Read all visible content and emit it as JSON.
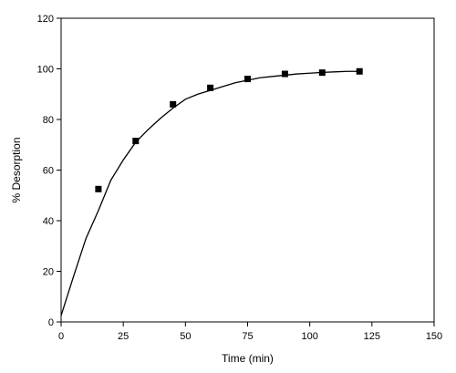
{
  "chart_data": {
    "type": "scatter",
    "title": "",
    "xlabel": "Time (min)",
    "ylabel": "% Desorption",
    "xlim": [
      0,
      150
    ],
    "ylim": [
      0,
      120
    ],
    "xticks": [
      0,
      25,
      50,
      75,
      100,
      125,
      150
    ],
    "yticks": [
      0,
      20,
      40,
      60,
      80,
      100,
      120
    ],
    "grid": false,
    "legend": "none",
    "series": [
      {
        "kind": "scatter",
        "marker": "square",
        "color": "#000000",
        "x": [
          15,
          30,
          45,
          60,
          75,
          90,
          105,
          120
        ],
        "y": [
          52.5,
          71.5,
          86,
          92.5,
          96,
          98,
          98.5,
          99
        ]
      },
      {
        "kind": "line",
        "color": "#000000",
        "x": [
          0,
          5,
          10,
          15,
          20,
          25,
          30,
          35,
          40,
          45,
          50,
          55,
          60,
          65,
          70,
          75,
          80,
          85,
          90,
          95,
          100,
          105,
          110,
          115,
          120
        ],
        "y": [
          2.5,
          18,
          33,
          44,
          56,
          64,
          71,
          76,
          80.5,
          84.5,
          88,
          90,
          91.5,
          93,
          94.5,
          95.5,
          96.5,
          97,
          97.5,
          98,
          98.3,
          98.6,
          98.8,
          99,
          99
        ]
      }
    ]
  }
}
